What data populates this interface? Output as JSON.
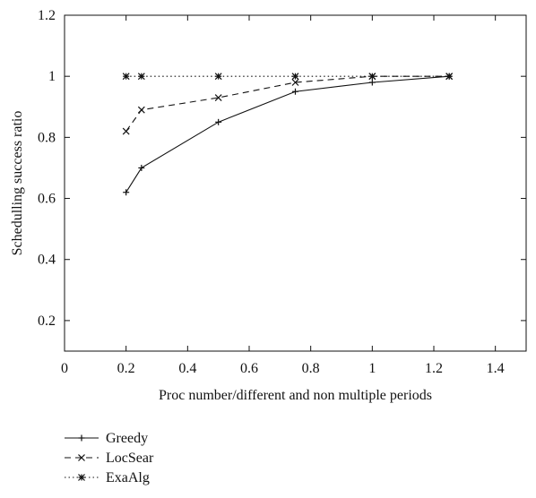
{
  "chart_data": {
    "type": "line",
    "title": "",
    "xlabel": "Proc number/different and non multiple periods",
    "ylabel": "Schedulling success ratio",
    "xlim": [
      0,
      1.5
    ],
    "ylim": [
      0.1,
      1.2
    ],
    "xticks": [
      0,
      0.2,
      0.4,
      0.6,
      0.8,
      1,
      1.2,
      1.4
    ],
    "yticks": [
      0.2,
      0.4,
      0.6,
      0.8,
      1,
      1.2
    ],
    "xtick_labels": [
      "0",
      "0.2",
      "0.4",
      "0.6",
      "0.8",
      "1",
      "1.2",
      "1.4"
    ],
    "ytick_labels": [
      "0.2",
      "0.4",
      "0.6",
      "0.8",
      "1",
      "1.2"
    ],
    "grid": false,
    "legend_position": "below-left",
    "series": [
      {
        "name": "Greedy",
        "style": "solid",
        "marker": "plus",
        "x": [
          0.2,
          0.25,
          0.5,
          0.75,
          1.0,
          1.25
        ],
        "y": [
          0.62,
          0.7,
          0.85,
          0.95,
          0.98,
          1.0
        ]
      },
      {
        "name": "LocSear",
        "style": "dashed",
        "marker": "x",
        "x": [
          0.2,
          0.25,
          0.5,
          0.75,
          1.0,
          1.25
        ],
        "y": [
          0.82,
          0.89,
          0.93,
          0.98,
          1.0,
          1.0
        ]
      },
      {
        "name": "ExaAlg",
        "style": "dotted",
        "marker": "star",
        "x": [
          0.2,
          0.25,
          0.5,
          0.75,
          1.0,
          1.25
        ],
        "y": [
          1.0,
          1.0,
          1.0,
          1.0,
          1.0,
          1.0
        ]
      }
    ]
  }
}
